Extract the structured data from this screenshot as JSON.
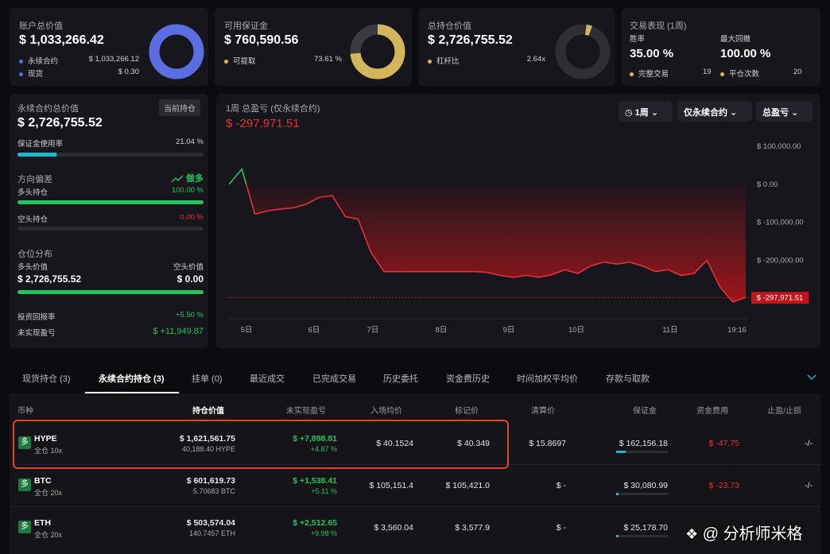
{
  "summary_cards": [
    {
      "title": "账户总价值",
      "value": "$ 1,033,266.42",
      "rows": [
        {
          "label": "永续合约",
          "value": "$ 1,033,266.12"
        },
        {
          "label": "现货",
          "value": "$ 0.30"
        }
      ]
    },
    {
      "title": "可用保证金",
      "value": "$ 760,590.56",
      "rows": [
        {
          "label": "可提取",
          "value": "73.61 %"
        }
      ]
    },
    {
      "title": "总持仓价值",
      "value": "$ 2,726,755.52",
      "rows": [
        {
          "label": "杠杆比",
          "value": "2.64x"
        }
      ]
    }
  ],
  "performance": {
    "title": "交易表现 (1周)",
    "win_rate": {
      "label": "胜率",
      "value": "35.00 %"
    },
    "max_drawdown": {
      "label": "最大回撤",
      "value": "100.00 %"
    },
    "completed": {
      "label": "完整交易",
      "value": "19"
    },
    "closed": {
      "label": "平仓次数",
      "value": "20"
    }
  },
  "perp_panel": {
    "title": "永续合约总价值",
    "badge": "当前持仓",
    "value": "$ 2,726,755.52",
    "margin_usage": {
      "label": "保证金使用率",
      "value": "21.04 %"
    },
    "bias": {
      "title": "方向偏差",
      "direction": "做多",
      "long": {
        "label": "多头持仓",
        "value": "100.00 %"
      },
      "short": {
        "label": "空头持仓",
        "value": "0.00 %"
      }
    },
    "distribution": {
      "title": "仓位分布",
      "long_label": "多头价值",
      "short_label": "空头价值",
      "long_value": "$ 2,726,755.52",
      "short_value": "$ 0.00"
    },
    "roi": {
      "label": "投资回报率",
      "value": "+5.50 %"
    },
    "unrealized": {
      "label": "未实现盈亏",
      "value": "$ +11,949.87"
    }
  },
  "pnl_chart": {
    "type": "line",
    "title": "1周 总盈亏 (仅永续合约)",
    "current": "$ -297,971.51",
    "controls": [
      "1周",
      "仅永续合约",
      "总盈亏"
    ],
    "x_labels": [
      "5日",
      "6日",
      "7日",
      "8日",
      "9日",
      "10日",
      "11日",
      "19:16"
    ],
    "values": [
      0,
      40000,
      -78000,
      -70000,
      -65000,
      -62000,
      -52000,
      -34000,
      -30000,
      -85000,
      -92000,
      -180000,
      -230000,
      -230000,
      -230000,
      -230000,
      -230000,
      -230000,
      -230000,
      -230000,
      -232000,
      -240000,
      -245000,
      -240000,
      -245000,
      -238000,
      -225000,
      -235000,
      -215000,
      -205000,
      -210000,
      -205000,
      -215000,
      -230000,
      -225000,
      -240000,
      -235000,
      -200000,
      -270000,
      -310000,
      -297971.51
    ],
    "ylim": [
      -352000,
      140000
    ],
    "yticks": [
      {
        "value": 100000,
        "label": "$ 100,000.00"
      },
      {
        "value": 0,
        "label": "$ 0.00"
      },
      {
        "value": -100000,
        "label": "$ -100,000.00"
      },
      {
        "value": -200000,
        "label": "$ -200,000.00"
      }
    ]
  },
  "tabs": [
    "现货持仓 (3)",
    "永续合约持仓 (3)",
    "挂单 (0)",
    "最近成交",
    "已完成交易",
    "历史委托",
    "资金费历史",
    "时间加权平均价",
    "存款与取款"
  ],
  "table": {
    "columns": [
      "币种",
      "持仓价值",
      "未实现盈亏",
      "入场均价",
      "标记价",
      "清算价",
      "保证金",
      "资金费用",
      "止盈/止损"
    ],
    "rows": [
      {
        "side": "多",
        "symbol": "HYPE",
        "mode": "全仓 10x",
        "position_value": "$ 1,621,561.75",
        "size": "40,188.40 HYPE",
        "pnl": "$ +7,898.81",
        "pnl_pct": "+4.87 %",
        "entry": "$ 40.1524",
        "mark": "$ 40.349",
        "liq": "$ 15.8697",
        "margin": "$ 162,156.18",
        "funding": "$ -47.75",
        "tpsl": "-/-"
      },
      {
        "side": "多",
        "symbol": "BTC",
        "mode": "全仓 20x",
        "position_value": "$ 601,619.73",
        "size": "5.70683 BTC",
        "pnl": "$ +1,538.41",
        "pnl_pct": "+5.11 %",
        "entry": "$ 105,151.4",
        "mark": "$ 105,421.0",
        "liq": "$ -",
        "margin": "$ 30,080.99",
        "funding": "$ -23.73",
        "tpsl": "-/-"
      },
      {
        "side": "多",
        "symbol": "ETH",
        "mode": "全仓 20x",
        "position_value": "$ 503,574.04",
        "size": "140.7457 ETH",
        "pnl": "$ +2,512.65",
        "pnl_pct": "+9.98 %",
        "entry": "$ 3,560.04",
        "mark": "$ 3,577.9",
        "liq": "$ -",
        "margin": "$ 25,178.70"
      }
    ]
  },
  "watermark": "@ 分析师米格"
}
